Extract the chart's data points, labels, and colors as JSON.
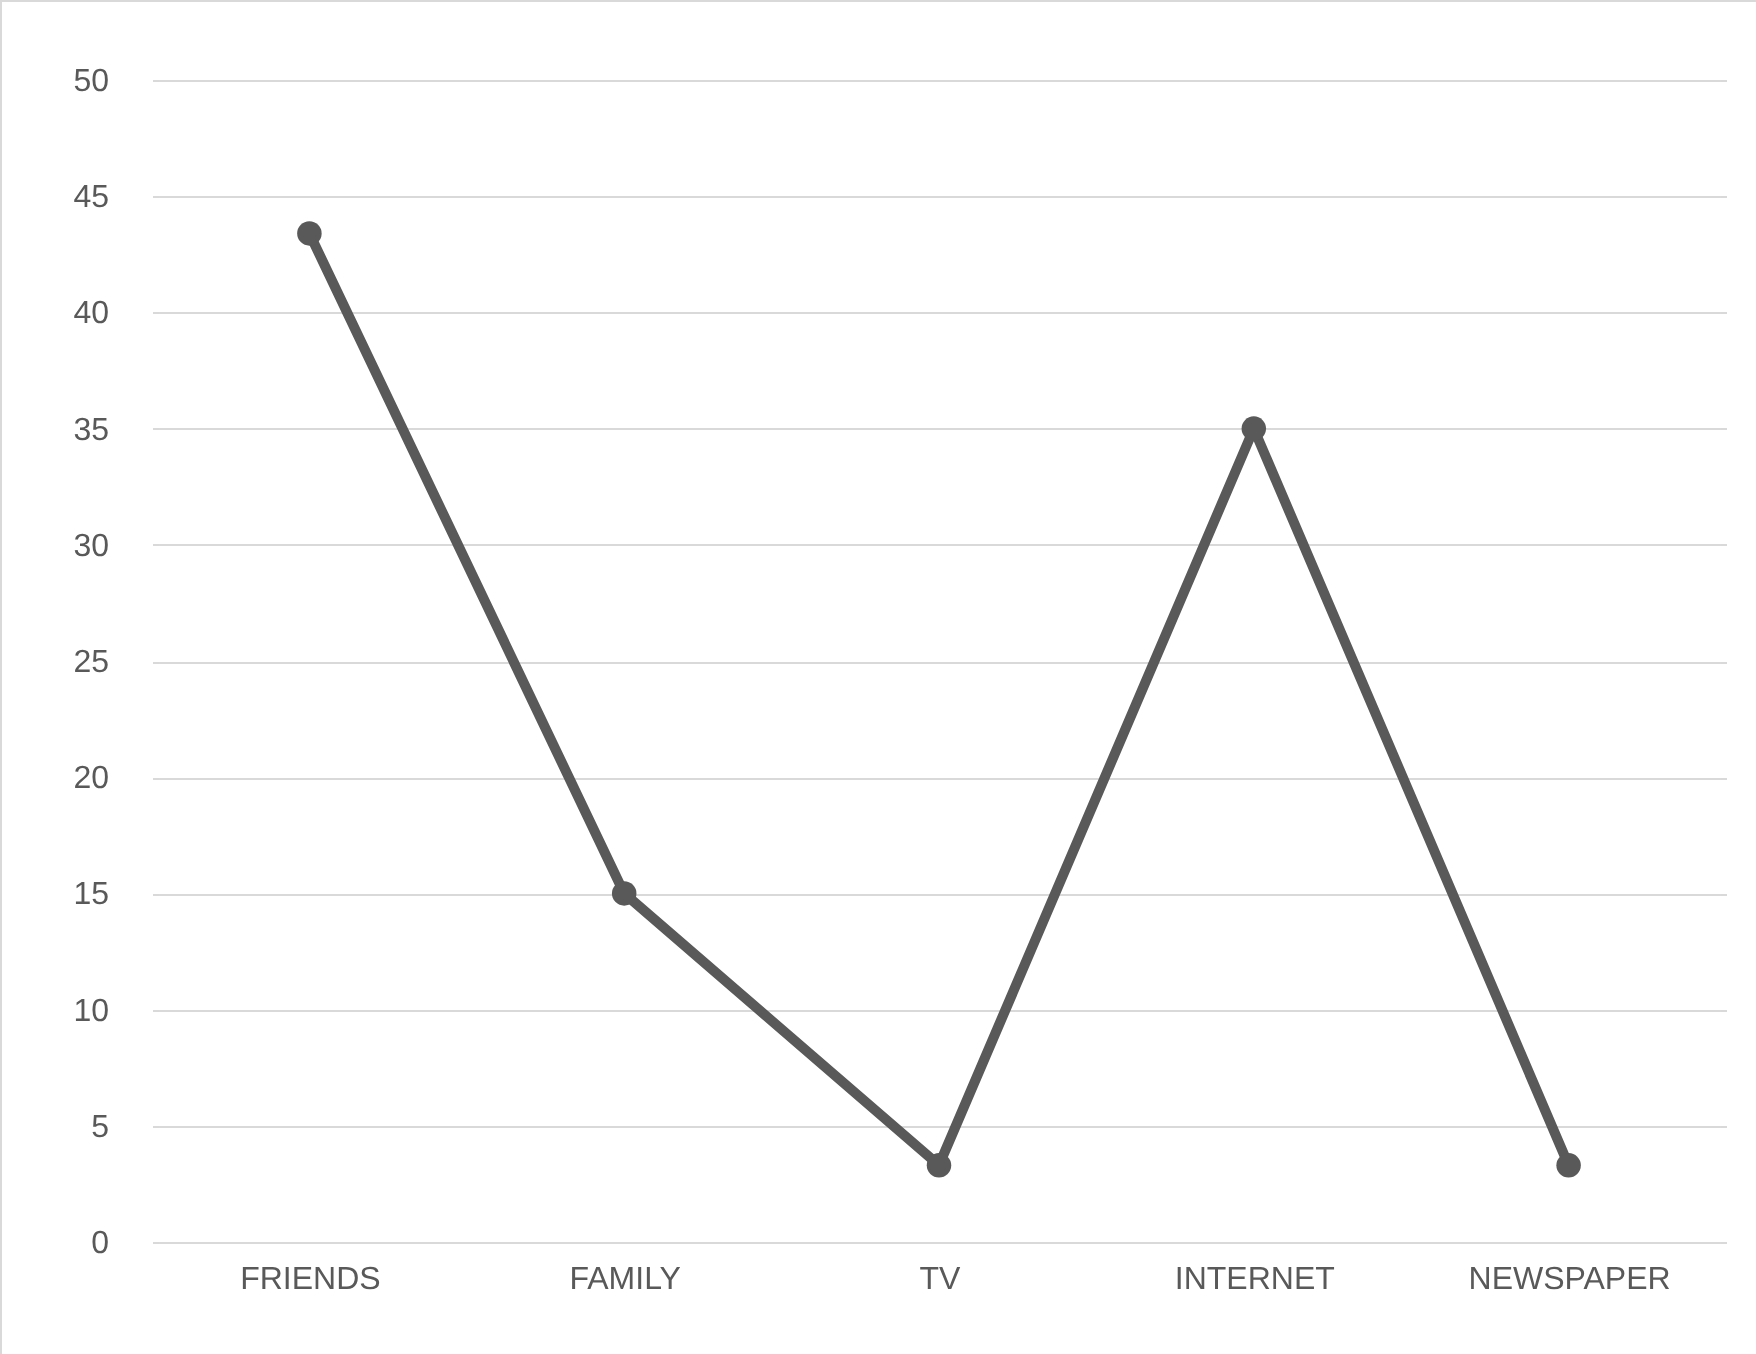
{
  "chart_data": {
    "type": "line",
    "categories": [
      "FRIENDS",
      "FAMILY",
      "TV",
      "INTERNET",
      "NEWSPAPER"
    ],
    "series": [
      {
        "color": "#595959",
        "values": [
          43.4,
          15,
          3.3,
          35,
          3.3
        ]
      }
    ],
    "ylim": [
      0,
      50
    ],
    "yticks": [
      0,
      5,
      10,
      15,
      20,
      25,
      30,
      35,
      40,
      45,
      50
    ],
    "grid": "y",
    "marker": "circle",
    "line_style": "solid"
  }
}
